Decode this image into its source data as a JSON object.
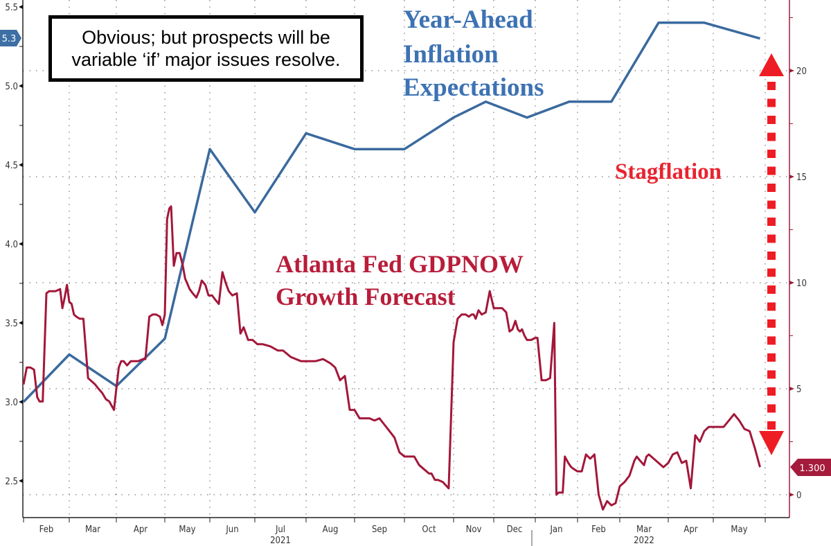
{
  "chart_data": {
    "type": "line",
    "title": "",
    "annotations": {
      "note": "Obvious; but prospects will be variable ‘if’ major issues resolve.",
      "inflation_label": [
        "Year-Ahead",
        "Inflation",
        "Expectations"
      ],
      "gdp_label": [
        "Atlanta Fed GDPNOW",
        "Growth Forecast"
      ],
      "stagflation_label": "Stagflation"
    },
    "x_axis": {
      "months": [
        "Feb",
        "Mar",
        "Apr",
        "May",
        "Jun",
        "Jul",
        "Aug",
        "Sep",
        "Oct",
        "Nov",
        "Dec",
        "Jan",
        "Feb",
        "Mar",
        "Apr",
        "May"
      ],
      "years": [
        {
          "label": "2021",
          "under": "Jul"
        },
        {
          "label": "2022",
          "under": "Mar"
        }
      ],
      "range": [
        "2021-01-31",
        "2022-05-31"
      ]
    },
    "left_axis": {
      "ticks": [
        "5.5",
        "5.0",
        "4.5",
        "4.0",
        "3.5",
        "3.0",
        "2.5"
      ],
      "range": [
        2.3,
        5.55
      ],
      "last_value_tag": "5.3",
      "color": "#3d6fa5"
    },
    "right_axis": {
      "ticks": [
        "20",
        "15",
        "10",
        "5",
        "0"
      ],
      "range": [
        -1.0,
        23.5
      ],
      "last_value_tag": "1.300",
      "color": "#a51b3c"
    },
    "colors": {
      "inflation": "#3a6a9e",
      "gdp": "#a3173a",
      "inflation_text": "#3d72b4",
      "gdp_text": "#b81d3a",
      "stagflation": "#e8232f",
      "arrow": "#ee1c24"
    },
    "series": [
      {
        "name": "Year-Ahead Inflation Expectations",
        "axis": "left",
        "x_month_index": [
          0,
          1,
          2,
          3,
          4,
          5,
          6,
          7,
          8,
          9,
          9.8,
          10.8,
          11.8,
          12.8,
          13.8,
          14.8,
          15.9
        ],
        "values": [
          3.0,
          3.3,
          3.1,
          3.4,
          4.6,
          4.2,
          4.7,
          4.6,
          4.6,
          4.8,
          4.9,
          4.8,
          4.9,
          4.9,
          5.4,
          5.4,
          5.3
        ]
      },
      {
        "name": "Atlanta Fed GDPNOW Growth Forecast",
        "axis": "right",
        "x_month_index": [
          0,
          0.07,
          0.15,
          0.23,
          0.3,
          0.35,
          0.42,
          0.5,
          0.56,
          0.6,
          0.7,
          0.8,
          0.85,
          0.9,
          0.95,
          1.0,
          1.05,
          1.1,
          1.15,
          1.22,
          1.3,
          1.4,
          1.5,
          1.55,
          1.62,
          1.7,
          1.78,
          1.85,
          1.95,
          2.0,
          2.05,
          2.1,
          2.15,
          2.22,
          2.3,
          2.45,
          2.55,
          2.6,
          2.68,
          2.75,
          2.82,
          2.9,
          2.95,
          3.0,
          3.05,
          3.1,
          3.14,
          3.2,
          3.26,
          3.33,
          3.4,
          3.45,
          3.55,
          3.62,
          3.7,
          3.76,
          3.82,
          3.9,
          3.97,
          4.05,
          4.12,
          4.2,
          4.28,
          4.35,
          4.42,
          4.5,
          4.6,
          4.68,
          4.75,
          4.85,
          4.95,
          5.05,
          5.15,
          5.3,
          5.45,
          5.55,
          5.7,
          5.8,
          5.9,
          6.0,
          6.1,
          6.2,
          6.35,
          6.5,
          6.6,
          6.7,
          6.8,
          6.9,
          7.0,
          7.1,
          7.2,
          7.3,
          7.4,
          7.5,
          7.6,
          7.7,
          7.8,
          7.9,
          8.0,
          8.1,
          8.2,
          8.3,
          8.4,
          8.5,
          8.55,
          8.62,
          8.68,
          8.78,
          8.9,
          9.0,
          9.1,
          9.2,
          9.3,
          9.38,
          9.45,
          9.5,
          9.55,
          9.62,
          9.7,
          9.8,
          9.9,
          10.0,
          10.1,
          10.2,
          10.3,
          10.38,
          10.45,
          10.52,
          10.58,
          10.63,
          10.68,
          10.74,
          10.8,
          10.9,
          11.0,
          11.05,
          11.15,
          11.25,
          11.35,
          11.45,
          11.5,
          11.55,
          11.6,
          11.65,
          11.7,
          11.78,
          11.85,
          11.92,
          12.0,
          12.1,
          12.2,
          12.3,
          12.4,
          12.5,
          12.6,
          12.7,
          12.8,
          12.9,
          13.0,
          13.1,
          13.2,
          13.3,
          13.35,
          13.42,
          13.5,
          13.55,
          13.6,
          13.7,
          13.8,
          13.9,
          14.0,
          14.1,
          14.2,
          14.3,
          14.4,
          14.5,
          14.6,
          14.7,
          14.8,
          14.9,
          15.0,
          15.1,
          15.2,
          15.3,
          15.4,
          15.5,
          15.6,
          15.7,
          15.8,
          15.9
        ],
        "values": [
          5.2,
          6.0,
          6.0,
          5.9,
          4.6,
          4.4,
          4.4,
          9.5,
          9.6,
          9.6,
          9.6,
          9.7,
          8.8,
          9.3,
          9.9,
          9.1,
          9.0,
          8.5,
          8.4,
          8.3,
          8.3,
          5.5,
          5.3,
          5.2,
          5.0,
          4.8,
          4.5,
          4.4,
          4.0,
          5.0,
          6.0,
          6.3,
          6.3,
          6.1,
          6.3,
          6.3,
          6.4,
          6.4,
          8.4,
          8.5,
          8.5,
          8.4,
          8.0,
          8.5,
          13.0,
          13.5,
          13.6,
          10.8,
          11.4,
          11.4,
          10.8,
          10.2,
          9.7,
          9.5,
          9.3,
          9.6,
          10.1,
          9.9,
          9.4,
          9.4,
          9.2,
          9.0,
          10.5,
          10.0,
          9.6,
          9.4,
          9.5,
          7.6,
          7.9,
          7.3,
          7.3,
          7.1,
          7.1,
          7.0,
          6.8,
          6.8,
          6.5,
          6.4,
          6.3,
          6.3,
          6.3,
          6.3,
          6.4,
          6.2,
          6.0,
          5.4,
          5.6,
          4.0,
          4.0,
          3.6,
          3.6,
          3.6,
          3.5,
          3.6,
          3.3,
          3.0,
          2.7,
          2.0,
          1.8,
          1.8,
          1.8,
          1.4,
          1.2,
          1.0,
          1.0,
          0.7,
          0.7,
          0.6,
          0.3,
          7.2,
          8.3,
          8.5,
          8.5,
          8.4,
          8.5,
          8.5,
          8.3,
          8.7,
          8.5,
          8.6,
          9.6,
          8.8,
          8.8,
          8.8,
          8.6,
          7.7,
          7.8,
          8.2,
          7.8,
          7.7,
          7.8,
          7.5,
          7.3,
          7.3,
          7.4,
          7.4,
          5.4,
          5.4,
          5.5,
          8.1,
          0.0,
          0.1,
          0.1,
          0.1,
          1.8,
          1.5,
          1.3,
          1.2,
          1.1,
          1.1,
          1.9,
          1.7,
          1.9,
          0.0,
          -0.7,
          -0.3,
          -0.5,
          -0.4,
          0.4,
          0.6,
          0.9,
          1.6,
          1.8,
          1.6,
          1.4,
          1.8,
          1.9,
          1.7,
          1.5,
          1.3,
          1.5,
          1.9,
          2.0,
          1.5,
          1.6,
          0.3,
          2.8,
          2.5,
          3.0,
          3.2,
          3.2,
          3.2,
          3.2,
          3.5,
          3.8,
          3.5,
          3.1,
          3.0,
          2.2,
          1.3
        ]
      }
    ]
  }
}
